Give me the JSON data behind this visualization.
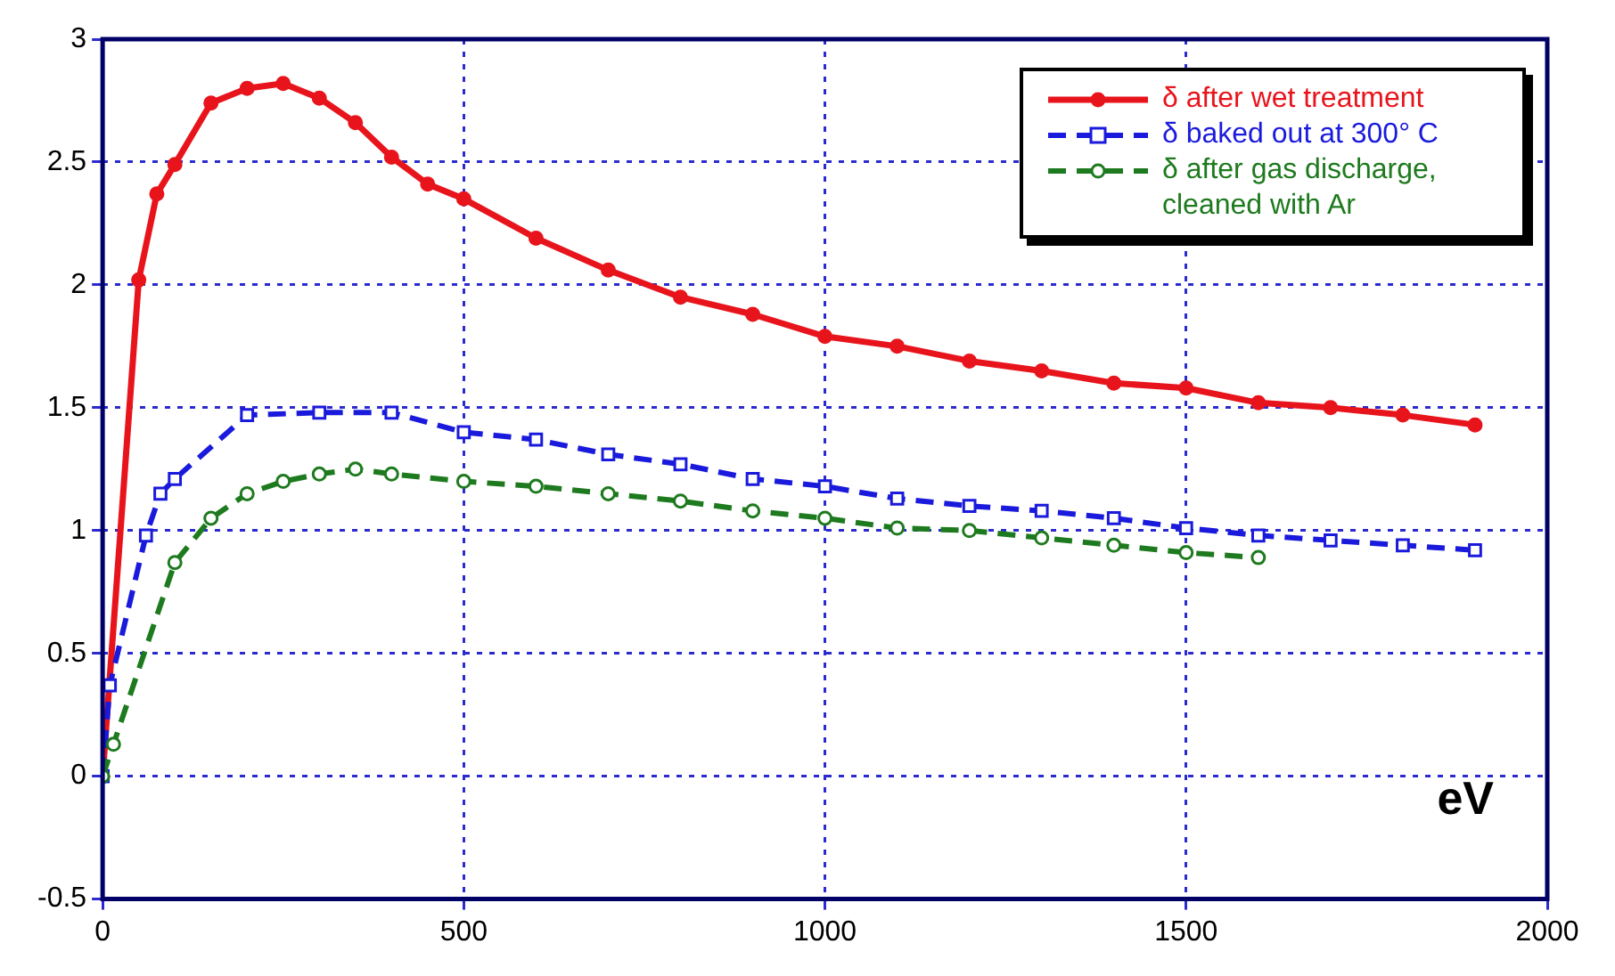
{
  "chart_data": {
    "type": "line",
    "xlabel": "eV",
    "xlim": [
      0,
      2000
    ],
    "xticks": [
      0,
      500,
      1000,
      1500,
      2000
    ],
    "ylim": [
      -0.5,
      3
    ],
    "yticks": [
      -0.5,
      0,
      0.5,
      1,
      1.5,
      2,
      2.5,
      3
    ],
    "grid": true,
    "legend": "top right",
    "series": [
      {
        "name": "δ after wet treatment",
        "color": "#e8141c",
        "marker": "circle",
        "line_style": "solid",
        "x": [
          0,
          50,
          75,
          100,
          150,
          200,
          250,
          300,
          350,
          400,
          450,
          500,
          600,
          700,
          800,
          900,
          1000,
          1100,
          1200,
          1300,
          1400,
          1500,
          1600,
          1700,
          1800,
          1900
        ],
        "values": [
          0,
          2.02,
          2.37,
          2.49,
          2.74,
          2.8,
          2.82,
          2.76,
          2.66,
          2.52,
          2.41,
          2.35,
          2.19,
          2.06,
          1.95,
          1.88,
          1.79,
          1.75,
          1.69,
          1.65,
          1.6,
          1.58,
          1.52,
          1.5,
          1.47,
          1.43
        ]
      },
      {
        "name": "δ baked out at 300° C",
        "color": "#1a1adc",
        "marker": "square",
        "line_style": "dashed",
        "x": [
          0,
          10,
          60,
          80,
          100,
          200,
          300,
          400,
          500,
          600,
          700,
          800,
          900,
          1000,
          1100,
          1200,
          1300,
          1400,
          1500,
          1600,
          1700,
          1800,
          1900
        ],
        "values": [
          0,
          0.37,
          0.98,
          1.15,
          1.21,
          1.47,
          1.48,
          1.48,
          1.4,
          1.37,
          1.31,
          1.27,
          1.21,
          1.18,
          1.13,
          1.1,
          1.08,
          1.05,
          1.01,
          0.98,
          0.96,
          0.94,
          0.92
        ]
      },
      {
        "name": "δ after gas discharge, cleaned with Ar",
        "color": "#1e7a1e",
        "marker": "circle",
        "line_style": "dashed",
        "x": [
          0,
          15,
          100,
          150,
          200,
          250,
          300,
          350,
          400,
          500,
          600,
          700,
          800,
          900,
          1000,
          1100,
          1200,
          1300,
          1400,
          1500,
          1600
        ],
        "values": [
          0,
          0.13,
          0.87,
          1.05,
          1.15,
          1.2,
          1.23,
          1.25,
          1.23,
          1.2,
          1.18,
          1.15,
          1.12,
          1.08,
          1.05,
          1.01,
          1,
          0.97,
          0.94,
          0.91,
          0.89
        ]
      }
    ]
  }
}
